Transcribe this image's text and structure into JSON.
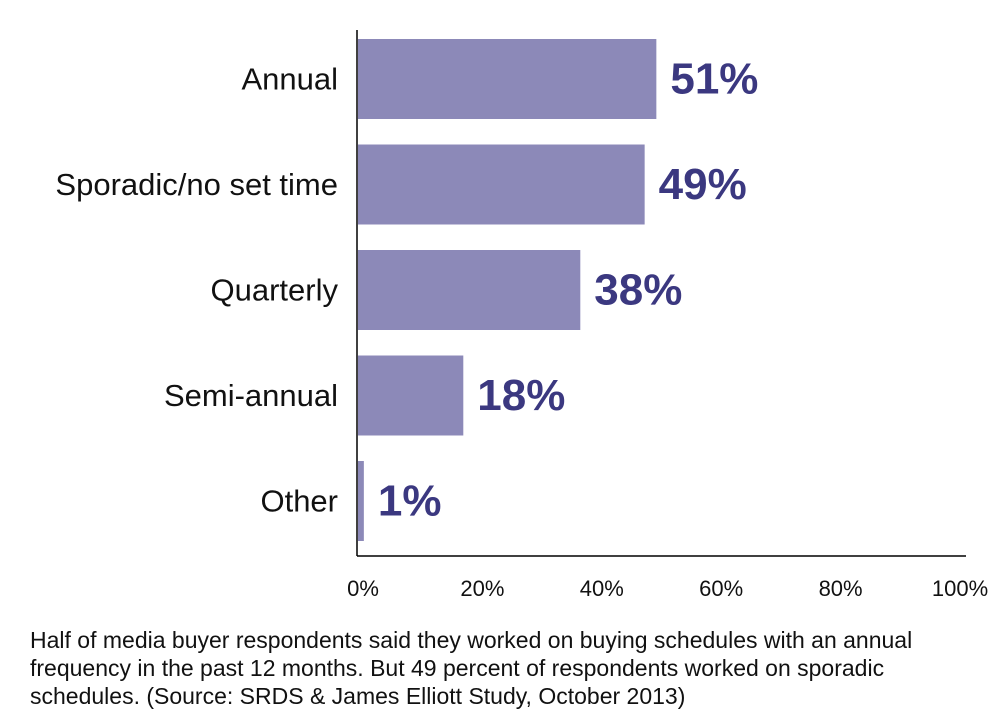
{
  "colors": {
    "bar": "#8c89b8",
    "value_text": "#3b3880",
    "axis": "#000000"
  },
  "chart_data": {
    "type": "bar",
    "orientation": "horizontal",
    "categories": [
      "Annual",
      "Sporadic/no set time",
      "Quarterly",
      "Semi-annual",
      "Other"
    ],
    "values": [
      51,
      49,
      38,
      18,
      1
    ],
    "value_labels": [
      "51%",
      "49%",
      "38%",
      "18%",
      "1%"
    ],
    "xlim": [
      0,
      100
    ],
    "xticks": [
      0,
      20,
      40,
      60,
      80,
      100
    ],
    "xtick_labels": [
      "0%",
      "20%",
      "40%",
      "60%",
      "80%",
      "100%"
    ],
    "title": "",
    "xlabel": "",
    "ylabel": ""
  },
  "caption": "Half of media buyer respondents said they worked on buying schedules with an annual frequency in the past 12 months. But 49 percent of respondents worked on sporadic schedules. (Source: SRDS & James Elliott Study, October 2013)"
}
